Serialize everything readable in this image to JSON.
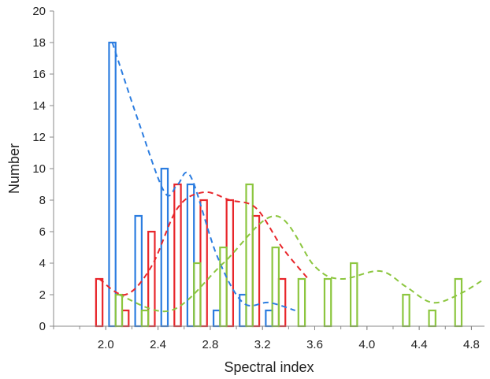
{
  "chart_data": {
    "type": "bar",
    "title": "",
    "xlabel": "Spectral index",
    "ylabel": "Number",
    "xlim": [
      1.6,
      4.9
    ],
    "ylim": [
      0,
      20
    ],
    "x_ticks": [
      2.0,
      2.4,
      2.8,
      3.2,
      3.6,
      4.0,
      4.4,
      4.8
    ],
    "x_tick_labels": [
      "2.0",
      "2.4",
      "2.8",
      "3.2",
      "3.6",
      "4.0",
      "4.4",
      "4.8"
    ],
    "y_ticks": [
      0,
      2,
      4,
      6,
      8,
      10,
      12,
      14,
      16,
      18,
      20
    ],
    "y_tick_labels": [
      "0",
      "2",
      "4",
      "6",
      "8",
      "10",
      "12",
      "14",
      "16",
      "18",
      "20"
    ],
    "grid": false,
    "legend": "none",
    "bar_width": 0.05,
    "series": [
      {
        "color": "#e8262b",
        "bars": [
          {
            "x": 1.95,
            "y": 3
          },
          {
            "x": 2.15,
            "y": 1
          },
          {
            "x": 2.35,
            "y": 6
          },
          {
            "x": 2.55,
            "y": 9
          },
          {
            "x": 2.75,
            "y": 8
          },
          {
            "x": 2.95,
            "y": 8
          },
          {
            "x": 3.15,
            "y": 7
          },
          {
            "x": 3.35,
            "y": 3
          }
        ],
        "fit": [
          [
            1.95,
            3.0
          ],
          [
            2.15,
            2.0
          ],
          [
            2.35,
            3.8
          ],
          [
            2.55,
            7.5
          ],
          [
            2.75,
            8.5
          ],
          [
            2.95,
            8.0
          ],
          [
            3.15,
            7.5
          ],
          [
            3.35,
            5.0
          ],
          [
            3.55,
            3.0
          ]
        ]
      },
      {
        "color": "#2c7de0",
        "bars": [
          {
            "x": 2.05,
            "y": 18
          },
          {
            "x": 2.25,
            "y": 7
          },
          {
            "x": 2.45,
            "y": 10
          },
          {
            "x": 2.65,
            "y": 9
          },
          {
            "x": 2.85,
            "y": 1
          },
          {
            "x": 3.05,
            "y": 2
          },
          {
            "x": 3.25,
            "y": 1
          }
        ],
        "fit": [
          [
            2.05,
            18.0
          ],
          [
            2.25,
            13.0
          ],
          [
            2.45,
            8.5
          ],
          [
            2.55,
            9.0
          ],
          [
            2.65,
            9.5
          ],
          [
            2.85,
            4.5
          ],
          [
            3.05,
            1.5
          ],
          [
            3.25,
            1.5
          ],
          [
            3.45,
            1.0
          ]
        ]
      },
      {
        "color": "#8cc63f",
        "bars": [
          {
            "x": 2.1,
            "y": 2
          },
          {
            "x": 2.3,
            "y": 1
          },
          {
            "x": 2.7,
            "y": 4
          },
          {
            "x": 2.9,
            "y": 5
          },
          {
            "x": 3.1,
            "y": 9
          },
          {
            "x": 3.3,
            "y": 5
          },
          {
            "x": 3.5,
            "y": 3
          },
          {
            "x": 3.7,
            "y": 3
          },
          {
            "x": 3.9,
            "y": 4
          },
          {
            "x": 4.3,
            "y": 2
          },
          {
            "x": 4.5,
            "y": 1
          },
          {
            "x": 4.7,
            "y": 3
          }
        ],
        "fit": [
          [
            2.1,
            2.0
          ],
          [
            2.5,
            1.0
          ],
          [
            2.9,
            4.0
          ],
          [
            3.3,
            7.0
          ],
          [
            3.6,
            3.8
          ],
          [
            3.8,
            3.0
          ],
          [
            4.1,
            3.5
          ],
          [
            4.3,
            2.5
          ],
          [
            4.5,
            1.5
          ],
          [
            4.7,
            2.0
          ],
          [
            4.9,
            3.0
          ]
        ]
      }
    ]
  }
}
